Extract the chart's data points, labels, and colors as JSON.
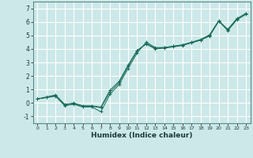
{
  "xlabel": "Humidex (Indice chaleur)",
  "background_color": "#cce8e8",
  "grid_color": "#ffffff",
  "line_color": "#1a6b5a",
  "ylim": [
    -1.5,
    7.5
  ],
  "xlim": [
    -0.5,
    23.5
  ],
  "yticks": [
    -1,
    0,
    1,
    2,
    3,
    4,
    5,
    6,
    7
  ],
  "xticks": [
    0,
    1,
    2,
    3,
    4,
    5,
    6,
    7,
    8,
    9,
    10,
    11,
    12,
    13,
    14,
    15,
    16,
    17,
    18,
    19,
    20,
    21,
    22,
    23
  ],
  "series1_x": [
    0,
    1,
    2,
    3,
    4,
    5,
    6,
    7,
    8,
    9,
    10,
    11,
    12,
    13,
    14,
    15,
    16,
    17,
    18,
    19,
    20,
    21,
    22,
    23
  ],
  "series1_y": [
    0.3,
    0.4,
    0.5,
    -0.2,
    -0.1,
    -0.3,
    -0.3,
    -0.65,
    0.65,
    1.35,
    2.55,
    3.7,
    4.5,
    4.1,
    4.1,
    4.2,
    4.3,
    4.45,
    4.65,
    4.95,
    6.05,
    5.45,
    6.25,
    6.6
  ],
  "series2_x": [
    0,
    1,
    2,
    3,
    4,
    5,
    6,
    7,
    8,
    9,
    10,
    11,
    12,
    13,
    14,
    15,
    16,
    17,
    18,
    19,
    20,
    21,
    22,
    23
  ],
  "series2_y": [
    0.3,
    0.4,
    0.55,
    -0.15,
    -0.05,
    -0.25,
    -0.25,
    -0.35,
    0.8,
    1.5,
    2.7,
    3.85,
    4.4,
    4.05,
    4.1,
    4.2,
    4.3,
    4.5,
    4.7,
    5.05,
    6.1,
    5.4,
    6.2,
    6.65
  ],
  "series3_x": [
    0,
    1,
    2,
    3,
    4,
    5,
    6,
    7,
    8,
    9,
    10,
    11,
    12,
    13,
    14,
    15,
    16,
    17,
    18,
    19,
    20,
    21,
    22,
    23
  ],
  "series3_y": [
    0.3,
    0.45,
    0.6,
    -0.1,
    0.0,
    -0.2,
    -0.2,
    -0.3,
    0.95,
    1.6,
    2.8,
    3.9,
    4.35,
    4.0,
    4.05,
    4.15,
    4.25,
    4.45,
    4.65,
    5.0,
    6.05,
    5.35,
    6.15,
    6.55
  ]
}
